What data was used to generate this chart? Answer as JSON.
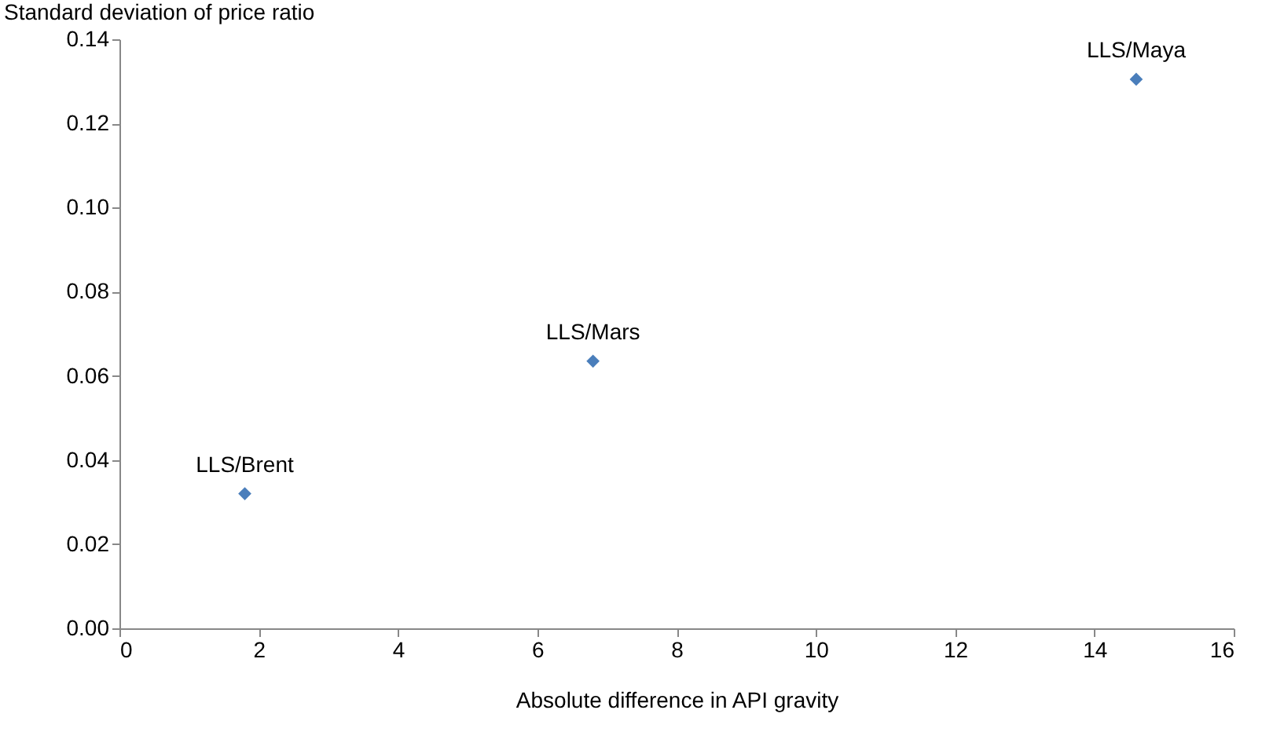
{
  "chart_data": {
    "type": "scatter",
    "xlabel": "Absolute difference in API gravity",
    "ylabel": "Standard deviation of price ratio",
    "x": [
      1.8,
      6.8,
      14.6
    ],
    "series": [
      {
        "color": "#4a7ebb",
        "values": [
          0.032,
          0.0635,
          0.1305
        ]
      }
    ],
    "marker": "diamond",
    "xlim": [
      0,
      16
    ],
    "xticks": [
      0,
      2,
      4,
      6,
      8,
      10,
      12,
      14,
      16
    ],
    "ylim": [
      0,
      0.14
    ],
    "yticks": [
      {
        "value": 0,
        "label": "0.00"
      },
      {
        "value": 0.02,
        "label": "0.02"
      },
      {
        "value": 0.04,
        "label": "0.04"
      },
      {
        "value": 0.06,
        "label": "0.06"
      },
      {
        "value": 0.08,
        "label": "0.08"
      },
      {
        "value": 0.1,
        "label": "0.10"
      },
      {
        "value": 0.12,
        "label": "0.12"
      },
      {
        "value": 0.14,
        "label": "0.14"
      }
    ],
    "annotations": [
      {
        "text": "LLS/Brent",
        "x": 1.8,
        "y": 0.032
      },
      {
        "text": "LLS/Mars",
        "x": 6.8,
        "y": 0.0635
      },
      {
        "text": "LLS/Maya",
        "x": 14.6,
        "y": 0.1305
      }
    ],
    "grid": false,
    "legend": false
  }
}
